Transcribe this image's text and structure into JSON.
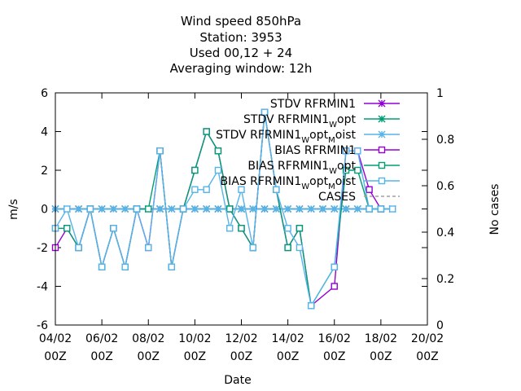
{
  "chart_data": {
    "type": "line",
    "title_lines": [
      "Wind speed 850hPa",
      "Station:     3953",
      "Used  00,12  + 24",
      "Averaging window: 12h"
    ],
    "xlabel": "Date",
    "ylabel": "m/s",
    "y2label": "No cases",
    "xlim": [
      0,
      32
    ],
    "ylim": [
      -6,
      6
    ],
    "y2lim": [
      0,
      1
    ],
    "x_ticks": [
      {
        "x": 0,
        "l1": "04/02",
        "l2": "00Z"
      },
      {
        "x": 4,
        "l1": "06/02",
        "l2": "00Z"
      },
      {
        "x": 8,
        "l1": "08/02",
        "l2": "00Z"
      },
      {
        "x": 12,
        "l1": "10/02",
        "l2": "00Z"
      },
      {
        "x": 16,
        "l1": "12/02",
        "l2": "00Z"
      },
      {
        "x": 20,
        "l1": "14/02",
        "l2": "00Z"
      },
      {
        "x": 24,
        "l1": "16/02",
        "l2": "00Z"
      },
      {
        "x": 28,
        "l1": "18/02",
        "l2": "00Z"
      },
      {
        "x": 32,
        "l1": "20/02",
        "l2": "00Z"
      }
    ],
    "y_ticks": [
      "-6",
      "-4",
      "-2",
      "0",
      "2",
      "4",
      "6"
    ],
    "y2_ticks": [
      "0",
      "0.2",
      "0.4",
      "0.6",
      "0.8",
      "1"
    ],
    "legend_position": "top-right",
    "series": [
      {
        "name": "STDV RFRMIN1",
        "marker": "star",
        "color": "#9400d3",
        "points": [
          [
            0,
            0
          ],
          [
            1,
            0
          ],
          [
            2,
            0
          ],
          [
            3,
            0
          ],
          [
            4,
            0
          ],
          [
            5,
            0
          ],
          [
            6,
            0
          ],
          [
            7,
            0
          ],
          [
            8,
            0
          ],
          [
            9,
            0
          ],
          [
            10,
            0
          ],
          [
            11,
            0
          ],
          [
            12,
            0
          ],
          [
            13,
            0
          ],
          [
            14,
            0
          ],
          [
            15,
            0
          ],
          [
            16,
            0
          ],
          [
            17,
            0
          ],
          [
            18,
            0
          ],
          [
            19,
            0
          ],
          [
            20,
            0
          ],
          [
            21,
            0
          ],
          [
            22,
            0
          ],
          [
            23,
            0
          ],
          [
            24,
            0
          ],
          [
            25,
            0
          ],
          [
            26,
            0
          ],
          [
            27,
            0
          ],
          [
            28,
            0
          ],
          [
            29,
            0
          ]
        ]
      },
      {
        "name": "STDV RFRMIN1",
        "sub1": "W",
        "tail1": "opt",
        "marker": "star",
        "color": "#009e73",
        "points": [
          [
            0,
            0
          ],
          [
            1,
            0
          ],
          [
            2,
            0
          ],
          [
            3,
            0
          ],
          [
            4,
            0
          ],
          [
            5,
            0
          ],
          [
            6,
            0
          ],
          [
            7,
            0
          ],
          [
            8,
            0
          ],
          [
            9,
            0
          ],
          [
            10,
            0
          ],
          [
            11,
            0
          ],
          [
            12,
            0
          ],
          [
            13,
            0
          ],
          [
            14,
            0
          ],
          [
            15,
            0
          ],
          [
            16,
            0
          ],
          [
            17,
            0
          ],
          [
            18,
            0
          ],
          [
            19,
            0
          ],
          [
            20,
            0
          ],
          [
            21,
            0
          ],
          [
            22,
            0
          ],
          [
            23,
            0
          ],
          [
            24,
            0
          ],
          [
            25,
            0
          ],
          [
            26,
            0
          ],
          [
            27,
            0
          ],
          [
            28,
            0
          ],
          [
            29,
            0
          ]
        ]
      },
      {
        "name": "STDV RFRMIN1",
        "sub1": "W",
        "tail1": "opt",
        "sub2": "M",
        "tail2": "oist",
        "marker": "star",
        "color": "#56b4e9",
        "points": [
          [
            0,
            0
          ],
          [
            1,
            0
          ],
          [
            2,
            0
          ],
          [
            3,
            0
          ],
          [
            4,
            0
          ],
          [
            5,
            0
          ],
          [
            6,
            0
          ],
          [
            7,
            0
          ],
          [
            8,
            0
          ],
          [
            9,
            0
          ],
          [
            10,
            0
          ],
          [
            11,
            0
          ],
          [
            12,
            0
          ],
          [
            13,
            0
          ],
          [
            14,
            0
          ],
          [
            15,
            0
          ],
          [
            16,
            0
          ],
          [
            17,
            0
          ],
          [
            18,
            0
          ],
          [
            19,
            0
          ],
          [
            20,
            0
          ],
          [
            21,
            0
          ],
          [
            22,
            0
          ],
          [
            23,
            0
          ],
          [
            24,
            0
          ],
          [
            25,
            0
          ],
          [
            26,
            0
          ],
          [
            27,
            0
          ],
          [
            28,
            0
          ],
          [
            29,
            0
          ]
        ]
      },
      {
        "name": "BIAS RFRMIN1",
        "marker": "square",
        "color": "#9400d3",
        "points": [
          [
            0,
            -2
          ],
          [
            1,
            -1
          ],
          [
            2,
            -2
          ],
          [
            3,
            0
          ],
          [
            4,
            -3
          ],
          [
            5,
            -1
          ],
          [
            6,
            -3
          ],
          [
            7,
            0
          ],
          [
            8,
            -2
          ],
          [
            9,
            3
          ],
          [
            10,
            -3
          ],
          [
            11,
            0
          ],
          [
            12,
            2
          ],
          [
            13,
            4
          ],
          [
            14,
            3
          ],
          [
            15,
            0
          ],
          [
            16,
            -1
          ],
          [
            17,
            -2
          ],
          [
            18,
            5
          ],
          [
            19,
            1
          ],
          [
            20,
            -2
          ],
          [
            21,
            -1
          ],
          [
            22,
            -5
          ],
          [
            24,
            -4
          ],
          [
            25,
            3
          ],
          [
            26,
            3
          ],
          [
            27,
            1
          ],
          [
            28,
            0
          ]
        ]
      },
      {
        "name": "BIAS RFRMIN1",
        "sub1": "W",
        "tail1": "opt",
        "marker": "square",
        "color": "#009e73",
        "points": [
          [
            0,
            -1
          ],
          [
            1,
            -1
          ],
          [
            2,
            -2
          ],
          [
            3,
            0
          ],
          [
            4,
            -3
          ],
          [
            5,
            -1
          ],
          [
            6,
            -3
          ],
          [
            7,
            0
          ],
          [
            8,
            0
          ],
          [
            9,
            3
          ],
          [
            10,
            -3
          ],
          [
            11,
            0
          ],
          [
            12,
            2
          ],
          [
            13,
            4
          ],
          [
            14,
            3
          ],
          [
            15,
            0
          ],
          [
            16,
            -1
          ],
          [
            17,
            -2
          ],
          [
            18,
            5
          ],
          [
            19,
            1
          ],
          [
            20,
            -2
          ],
          [
            21,
            -1
          ],
          [
            22,
            -5
          ],
          [
            24,
            -3
          ],
          [
            25,
            2
          ],
          [
            26,
            2
          ],
          [
            27,
            0
          ],
          [
            28,
            0
          ]
        ]
      },
      {
        "name": "BIAS RFRMIN1",
        "sub1": "W",
        "tail1": "opt",
        "sub2": "M",
        "tail2": "oist",
        "marker": "square",
        "color": "#56b4e9",
        "points": [
          [
            0,
            -1
          ],
          [
            1,
            0
          ],
          [
            2,
            -2
          ],
          [
            3,
            0
          ],
          [
            4,
            -3
          ],
          [
            5,
            -1
          ],
          [
            6,
            -3
          ],
          [
            7,
            0
          ],
          [
            8,
            -2
          ],
          [
            9,
            3
          ],
          [
            10,
            -3
          ],
          [
            11,
            0
          ],
          [
            12,
            1
          ],
          [
            13,
            1
          ],
          [
            14,
            2
          ],
          [
            15,
            -1
          ],
          [
            16,
            1
          ],
          [
            17,
            -2
          ],
          [
            18,
            5
          ],
          [
            19,
            1
          ],
          [
            20,
            -1
          ],
          [
            21,
            -2
          ],
          [
            22,
            -5
          ],
          [
            24,
            -3
          ],
          [
            25,
            3
          ],
          [
            26,
            3
          ],
          [
            27,
            0
          ],
          [
            28,
            0
          ],
          [
            29,
            0
          ]
        ]
      },
      {
        "name": "CASES",
        "marker": "none",
        "dashed": true,
        "axis": "y2",
        "color": "#a0a0a0",
        "points": []
      }
    ]
  }
}
